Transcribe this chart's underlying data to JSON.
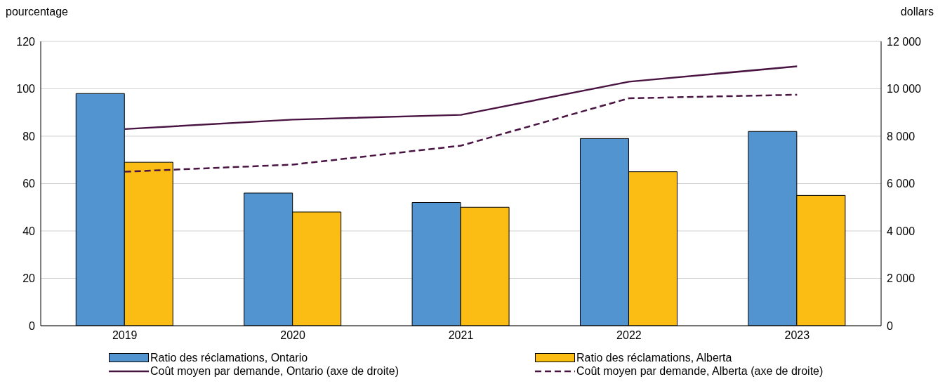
{
  "chart_data": {
    "type": "bar",
    "ylabel": "pourcentage",
    "y2label": "dollars",
    "categories": [
      "2019",
      "2020",
      "2021",
      "2022",
      "2023"
    ],
    "series": [
      {
        "name": "Ratio des réclamations, Ontario",
        "color": "#5294cf",
        "values": [
          98,
          56,
          52,
          79,
          82
        ]
      },
      {
        "name": "Ratio des réclamations, Alberta",
        "color": "#fbbd13",
        "values": [
          69,
          48,
          50,
          65,
          55
        ]
      },
      {
        "name": "Coût moyen par demande, Ontario (axe de droite)",
        "type": "line",
        "axis": "y2",
        "color": "#4a1442",
        "line_style": "solid",
        "values": [
          8300,
          8700,
          8900,
          10300,
          10950
        ]
      },
      {
        "name": "Coût moyen par demande, Alberta (axe de droite)",
        "type": "line",
        "axis": "y2",
        "color": "#4a1442",
        "line_style": "dashed",
        "values": [
          6500,
          6800,
          7600,
          9600,
          9750
        ]
      }
    ],
    "ylim": [
      0,
      120
    ],
    "yticks": [
      0,
      20,
      40,
      60,
      80,
      100,
      120
    ],
    "y2lim": [
      0,
      12000
    ],
    "y2ticks": [
      0,
      {
        "value": 2000,
        "label": "2 000"
      },
      {
        "value": 4000,
        "label": "4 000"
      },
      {
        "value": 6000,
        "label": "6 000"
      },
      {
        "value": 8000,
        "label": "8 000"
      },
      {
        "value": 10000,
        "label": "10 000"
      },
      {
        "value": 12000,
        "label": "12 000"
      }
    ],
    "grid": "y",
    "legend": "bottom",
    "marker": "none"
  }
}
